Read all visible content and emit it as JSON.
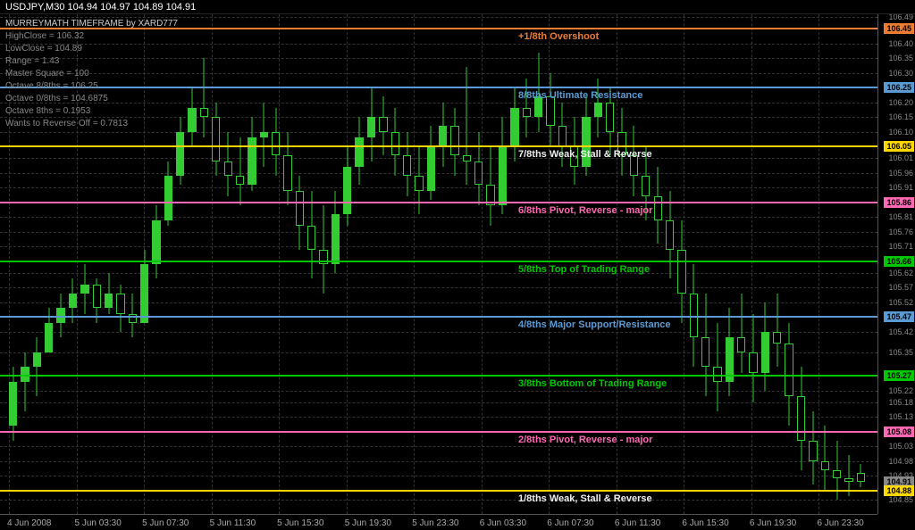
{
  "title": "USDJPY,M30  104.94 104.97 104.89 104.91",
  "info": {
    "header": "MURREYMATH TIMEFRAME by XARD777",
    "lines": [
      "HighClose = 106.32",
      "LowClose = 104.89",
      "Range = 1.43",
      "Master Square = 100",
      "Octave 8/8ths = 106.25",
      "Octave 0/8ths = 104.6875",
      "Octave 8ths = 0.1953",
      "Wants to Reverse Off = 0.7813"
    ]
  },
  "priceRange": {
    "min": 104.8,
    "max": 106.5
  },
  "priceTicks": [
    106.49,
    106.4,
    106.35,
    106.3,
    106.2,
    106.15,
    106.1,
    106.01,
    105.96,
    105.91,
    105.81,
    105.76,
    105.71,
    105.62,
    105.57,
    105.52,
    105.42,
    105.35,
    105.22,
    105.18,
    105.13,
    105.03,
    104.98,
    104.93,
    104.85
  ],
  "priceBoxes": [
    {
      "price": 106.45,
      "color": "#ed7d31"
    },
    {
      "price": 106.25,
      "color": "#5b9bd5"
    },
    {
      "price": 106.05,
      "color": "#ffd700"
    },
    {
      "price": 105.86,
      "color": "#ff69b4"
    },
    {
      "price": 105.66,
      "color": "#00c800"
    },
    {
      "price": 105.47,
      "color": "#5b9bd5"
    },
    {
      "price": 105.27,
      "color": "#00c800"
    },
    {
      "price": 105.08,
      "color": "#ff69b4"
    },
    {
      "price": 104.91,
      "color": "#888888"
    },
    {
      "price": 104.88,
      "color": "#ffd700"
    }
  ],
  "mmLines": [
    {
      "price": 106.45,
      "color": "#ed7d31",
      "label": "+1/8th Overshoot",
      "labelColor": "#ed7d31"
    },
    {
      "price": 106.25,
      "color": "#5b9bd5",
      "label": "8/8ths Ultimate Resistance",
      "labelColor": "#5b9bd5"
    },
    {
      "price": 106.05,
      "color": "#ffd700",
      "label": "7/8ths Weak, Stall & Reverse",
      "labelColor": "#eeeeee"
    },
    {
      "price": 105.86,
      "color": "#ff69b4",
      "label": "6/8ths Pivot, Reverse - major",
      "labelColor": "#ff69b4"
    },
    {
      "price": 105.66,
      "color": "#00c800",
      "label": "5/8ths Top of Trading Range",
      "labelColor": "#00c800"
    },
    {
      "price": 105.47,
      "color": "#5b9bd5",
      "label": "4/8ths Major Support/Resistance",
      "labelColor": "#5b9bd5"
    },
    {
      "price": 105.27,
      "color": "#00c800",
      "label": "3/8ths Bottom of Trading Range",
      "labelColor": "#00c800"
    },
    {
      "price": 105.08,
      "color": "#ff69b4",
      "label": "2/8ths Pivot, Reverse - major",
      "labelColor": "#ff69b4"
    },
    {
      "price": 104.88,
      "color": "#ffd700",
      "label": "1/8ths Weak, Stall & Reverse",
      "labelColor": "#eeeeee"
    }
  ],
  "timeTicks": [
    "4 Jun 2008",
    "5 Jun 03:30",
    "5 Jun 07:30",
    "5 Jun 11:30",
    "5 Jun 15:30",
    "5 Jun 19:30",
    "5 Jun 23:30",
    "6 Jun 03:30",
    "6 Jun 07:30",
    "6 Jun 11:30",
    "6 Jun 15:30",
    "6 Jun 19:30",
    "6 Jun 23:30"
  ],
  "candles": [
    {
      "h": 105.3,
      "l": 105.05,
      "o": 105.1,
      "c": 105.25
    },
    {
      "h": 105.35,
      "l": 105.15,
      "o": 105.25,
      "c": 105.3
    },
    {
      "h": 105.4,
      "l": 105.2,
      "o": 105.3,
      "c": 105.35
    },
    {
      "h": 105.5,
      "l": 105.35,
      "o": 105.35,
      "c": 105.45
    },
    {
      "h": 105.55,
      "l": 105.4,
      "o": 105.45,
      "c": 105.5
    },
    {
      "h": 105.6,
      "l": 105.45,
      "o": 105.5,
      "c": 105.55
    },
    {
      "h": 105.65,
      "l": 105.48,
      "o": 105.55,
      "c": 105.58
    },
    {
      "h": 105.6,
      "l": 105.45,
      "o": 105.58,
      "c": 105.5
    },
    {
      "h": 105.62,
      "l": 105.48,
      "o": 105.5,
      "c": 105.55
    },
    {
      "h": 105.58,
      "l": 105.42,
      "o": 105.55,
      "c": 105.48
    },
    {
      "h": 105.55,
      "l": 105.4,
      "o": 105.48,
      "c": 105.45
    },
    {
      "h": 105.7,
      "l": 105.45,
      "o": 105.45,
      "c": 105.65
    },
    {
      "h": 105.85,
      "l": 105.6,
      "o": 105.65,
      "c": 105.8
    },
    {
      "h": 106.0,
      "l": 105.78,
      "o": 105.8,
      "c": 105.95
    },
    {
      "h": 106.15,
      "l": 105.92,
      "o": 105.95,
      "c": 106.1
    },
    {
      "h": 106.25,
      "l": 106.05,
      "o": 106.1,
      "c": 106.18
    },
    {
      "h": 106.35,
      "l": 106.08,
      "o": 106.18,
      "c": 106.15
    },
    {
      "h": 106.2,
      "l": 105.95,
      "o": 106.15,
      "c": 106.0
    },
    {
      "h": 106.1,
      "l": 105.88,
      "o": 106.0,
      "c": 105.95
    },
    {
      "h": 106.08,
      "l": 105.85,
      "o": 105.95,
      "c": 105.92
    },
    {
      "h": 106.15,
      "l": 105.9,
      "o": 105.92,
      "c": 106.08
    },
    {
      "h": 106.2,
      "l": 105.98,
      "o": 106.08,
      "c": 106.1
    },
    {
      "h": 106.18,
      "l": 105.95,
      "o": 106.1,
      "c": 106.02
    },
    {
      "h": 106.1,
      "l": 105.85,
      "o": 106.02,
      "c": 105.9
    },
    {
      "h": 105.95,
      "l": 105.7,
      "o": 105.9,
      "c": 105.78
    },
    {
      "h": 105.9,
      "l": 105.6,
      "o": 105.78,
      "c": 105.7
    },
    {
      "h": 105.85,
      "l": 105.55,
      "o": 105.7,
      "c": 105.65
    },
    {
      "h": 105.9,
      "l": 105.62,
      "o": 105.65,
      "c": 105.82
    },
    {
      "h": 106.05,
      "l": 105.78,
      "o": 105.82,
      "c": 105.98
    },
    {
      "h": 106.15,
      "l": 105.92,
      "o": 105.98,
      "c": 106.08
    },
    {
      "h": 106.25,
      "l": 106.0,
      "o": 106.08,
      "c": 106.15
    },
    {
      "h": 106.22,
      "l": 106.02,
      "o": 106.15,
      "c": 106.1
    },
    {
      "h": 106.18,
      "l": 105.95,
      "o": 106.1,
      "c": 106.02
    },
    {
      "h": 106.1,
      "l": 105.88,
      "o": 106.02,
      "c": 105.95
    },
    {
      "h": 106.05,
      "l": 105.82,
      "o": 105.95,
      "c": 105.9
    },
    {
      "h": 106.12,
      "l": 105.87,
      "o": 105.9,
      "c": 106.05
    },
    {
      "h": 106.2,
      "l": 105.98,
      "o": 106.05,
      "c": 106.12
    },
    {
      "h": 106.18,
      "l": 105.95,
      "o": 106.12,
      "c": 106.02
    },
    {
      "h": 106.32,
      "l": 105.92,
      "o": 106.02,
      "c": 106.0
    },
    {
      "h": 106.1,
      "l": 105.85,
      "o": 106.0,
      "c": 105.92
    },
    {
      "h": 106.05,
      "l": 105.78,
      "o": 105.92,
      "c": 105.85
    },
    {
      "h": 106.15,
      "l": 105.82,
      "o": 105.85,
      "c": 106.05
    },
    {
      "h": 106.25,
      "l": 106.0,
      "o": 106.05,
      "c": 106.18
    },
    {
      "h": 106.28,
      "l": 106.08,
      "o": 106.18,
      "c": 106.15
    },
    {
      "h": 106.37,
      "l": 106.1,
      "o": 106.15,
      "c": 106.22
    },
    {
      "h": 106.3,
      "l": 106.05,
      "o": 106.22,
      "c": 106.12
    },
    {
      "h": 106.2,
      "l": 105.98,
      "o": 106.12,
      "c": 106.05
    },
    {
      "h": 106.15,
      "l": 105.92,
      "o": 106.05,
      "c": 105.98
    },
    {
      "h": 106.22,
      "l": 105.95,
      "o": 105.98,
      "c": 106.15
    },
    {
      "h": 106.28,
      "l": 106.08,
      "o": 106.15,
      "c": 106.2
    },
    {
      "h": 106.25,
      "l": 106.02,
      "o": 106.2,
      "c": 106.1
    },
    {
      "h": 106.18,
      "l": 105.95,
      "o": 106.1,
      "c": 106.02
    },
    {
      "h": 106.12,
      "l": 105.88,
      "o": 106.02,
      "c": 105.95
    },
    {
      "h": 106.05,
      "l": 105.8,
      "o": 105.95,
      "c": 105.88
    },
    {
      "h": 105.98,
      "l": 105.72,
      "o": 105.88,
      "c": 105.8
    },
    {
      "h": 105.9,
      "l": 105.6,
      "o": 105.8,
      "c": 105.7
    },
    {
      "h": 105.8,
      "l": 105.45,
      "o": 105.7,
      "c": 105.55
    },
    {
      "h": 105.65,
      "l": 105.3,
      "o": 105.55,
      "c": 105.4
    },
    {
      "h": 105.55,
      "l": 105.2,
      "o": 105.4,
      "c": 105.3
    },
    {
      "h": 105.45,
      "l": 105.15,
      "o": 105.3,
      "c": 105.25
    },
    {
      "h": 105.5,
      "l": 105.2,
      "o": 105.25,
      "c": 105.4
    },
    {
      "h": 105.55,
      "l": 105.28,
      "o": 105.4,
      "c": 105.35
    },
    {
      "h": 105.48,
      "l": 105.18,
      "o": 105.35,
      "c": 105.28
    },
    {
      "h": 105.52,
      "l": 105.22,
      "o": 105.28,
      "c": 105.42
    },
    {
      "h": 105.55,
      "l": 105.3,
      "o": 105.42,
      "c": 105.38
    },
    {
      "h": 105.45,
      "l": 105.1,
      "o": 105.38,
      "c": 105.2
    },
    {
      "h": 105.3,
      "l": 104.95,
      "o": 105.2,
      "c": 105.05
    },
    {
      "h": 105.15,
      "l": 104.9,
      "o": 105.05,
      "c": 104.98
    },
    {
      "h": 105.1,
      "l": 104.88,
      "o": 104.98,
      "c": 104.95
    },
    {
      "h": 105.05,
      "l": 104.85,
      "o": 104.95,
      "c": 104.92
    },
    {
      "h": 105.0,
      "l": 104.86,
      "o": 104.92,
      "c": 104.91
    },
    {
      "h": 104.97,
      "l": 104.89,
      "o": 104.94,
      "c": 104.91
    }
  ],
  "mmLabelX": 580
}
